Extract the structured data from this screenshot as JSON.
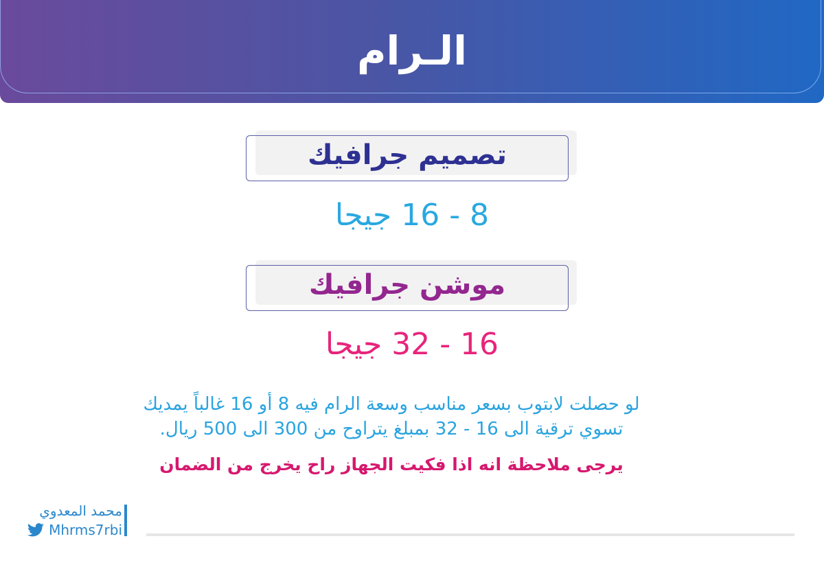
{
  "header": {
    "title": "الـرام"
  },
  "sections": [
    {
      "label": "تصميم جرافيك",
      "value": "8 - 16 جيجا",
      "label_color": "#2e3192",
      "value_color": "#29a8e0"
    },
    {
      "label": "موشن جرافيك",
      "value": "16 - 32 جيجا",
      "label_color": "#93278f",
      "value_color": "#e8247c"
    }
  ],
  "paragraph": {
    "line1": "لو حصلت لابتوب بسعر مناسب وسعة الرام فيه 8 أو 16 غالباً يمديك",
    "line2": "تسوي ترقية الى 16 - 32 بمبلغ يتراوح من 300 الى 500 ريال."
  },
  "note": "يرجى ملاحظة انه اذا فكيت الجهاز راح يخرج من الضمان",
  "author": {
    "name": "محمد المعدوي",
    "handle": "Mhrms7rbi",
    "icon": "twitter-bird-icon"
  }
}
